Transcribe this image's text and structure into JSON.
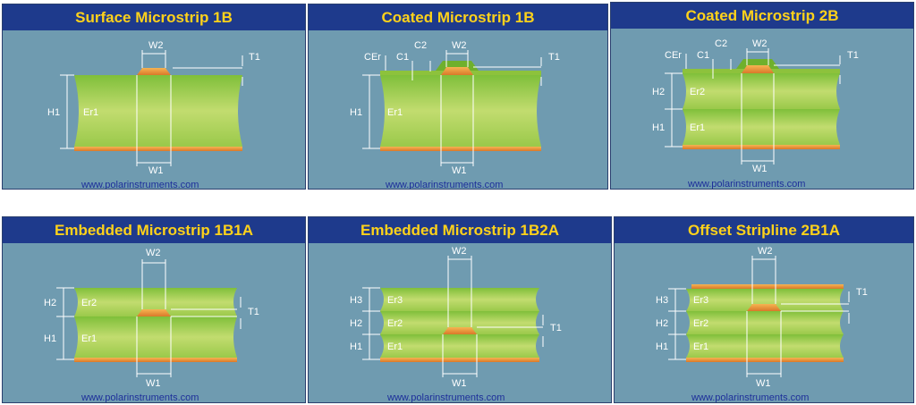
{
  "colors": {
    "header_bg": "#1e3a8c",
    "header_text": "#ffd21a",
    "panel_bg": "#6f9bb0",
    "url_text": "#1d2f9a"
  },
  "panels": [
    {
      "title": "Surface Microstrip 1B",
      "url": "www.polarinstruments.com",
      "labels": {
        "W2": "W2",
        "T1": "T1",
        "H1": "H1",
        "Er1": "Er1",
        "W1": "W1"
      }
    },
    {
      "title": "Coated Microstrip 1B",
      "url": "www.polarinstruments.com",
      "labels": {
        "CEr": "CEr",
        "C1": "C1",
        "C2": "C2",
        "W2": "W2",
        "T1": "T1",
        "H1": "H1",
        "Er1": "Er1",
        "W1": "W1"
      }
    },
    {
      "title": "Coated Microstrip 2B",
      "url": "www.polarinstruments.com",
      "labels": {
        "CEr": "CEr",
        "C1": "C1",
        "C2": "C2",
        "W2": "W2",
        "T1": "T1",
        "H2": "H2",
        "Er2": "Er2",
        "H1": "H1",
        "Er1": "Er1",
        "W1": "W1"
      }
    },
    {
      "title": "Embedded Microstrip 1B1A",
      "url": "www.polarinstruments.com",
      "labels": {
        "W2": "W2",
        "T1": "T1",
        "H2": "H2",
        "Er2": "Er2",
        "H1": "H1",
        "Er1": "Er1",
        "W1": "W1"
      }
    },
    {
      "title": "Embedded Microstrip 1B2A",
      "url": "www.polarinstruments.com",
      "labels": {
        "W2": "W2",
        "T1": "T1",
        "H3": "H3",
        "Er3": "Er3",
        "H2": "H2",
        "Er2": "Er2",
        "H1": "H1",
        "Er1": "Er1",
        "W1": "W1"
      }
    },
    {
      "title": "Offset Stripline 2B1A",
      "url": "www.polarinstruments.com",
      "labels": {
        "W2": "W2",
        "T1": "T1",
        "H3": "H3",
        "Er3": "Er3",
        "H2": "H2",
        "Er2": "Er2",
        "H1": "H1",
        "Er1": "Er1",
        "W1": "W1"
      }
    }
  ]
}
